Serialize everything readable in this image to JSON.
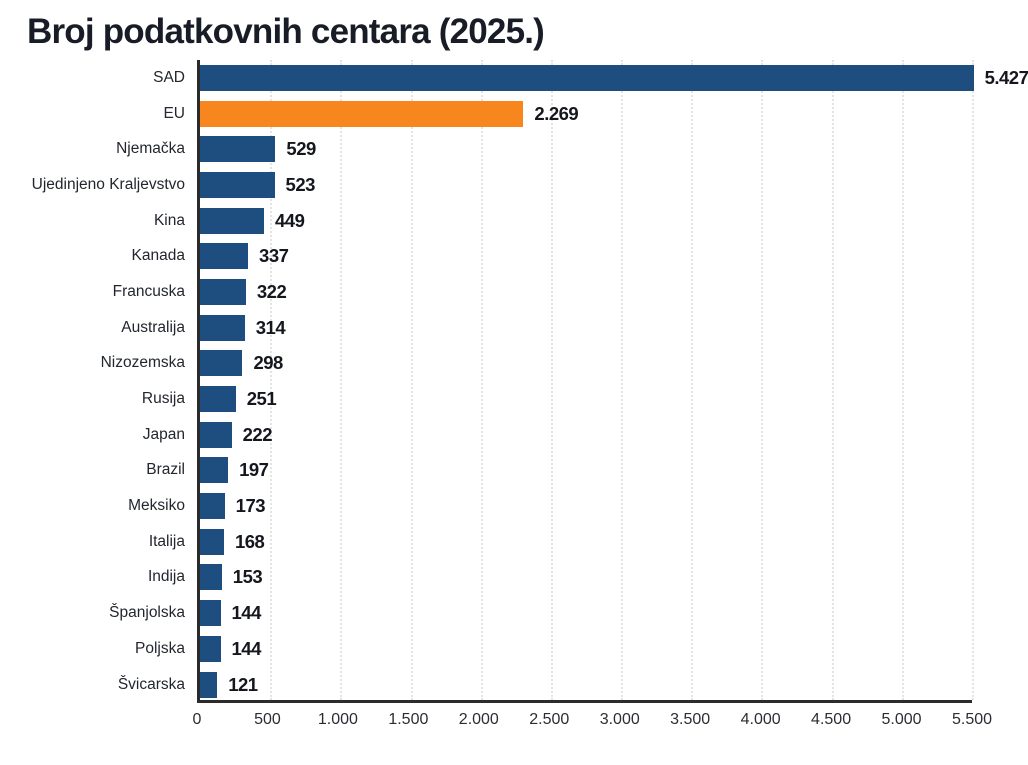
{
  "title": "Broj podatkovnih centara (2025.)",
  "colors": {
    "bar": "#1d4e7f",
    "highlight": "#f7861e",
    "axis": "#2b2b2b",
    "grid": "#e3e3e3",
    "title_text": "#181c26",
    "value_text": "#14171d",
    "category_text": "#22262e"
  },
  "chart_data": {
    "type": "bar",
    "orientation": "horizontal",
    "title": "Broj podatkovnih centara (2025.)",
    "categories": [
      "SAD",
      "EU",
      "Njemačka",
      "Ujedinjeno Kraljevstvo",
      "Kina",
      "Kanada",
      "Francuska",
      "Australija",
      "Nizozemska",
      "Rusija",
      "Japan",
      "Brazil",
      "Meksiko",
      "Italija",
      "Indija",
      "Španjolska",
      "Poljska",
      "Švicarska"
    ],
    "values": [
      5427,
      2269,
      529,
      523,
      449,
      337,
      322,
      314,
      298,
      251,
      222,
      197,
      173,
      168,
      153,
      144,
      144,
      121
    ],
    "value_labels": [
      "5.427",
      "2.269",
      "529",
      "523",
      "449",
      "337",
      "322",
      "314",
      "298",
      "251",
      "222",
      "197",
      "173",
      "168",
      "153",
      "144",
      "144",
      "121"
    ],
    "highlight_category": "EU",
    "xlim": [
      0,
      5500
    ],
    "x_ticks": [
      0,
      500,
      1000,
      1500,
      2000,
      2500,
      3000,
      3500,
      4000,
      4500,
      5000,
      5500
    ],
    "x_tick_labels": [
      "0",
      "500",
      "1.000",
      "1.500",
      "2.000",
      "2.500",
      "3.000",
      "3.500",
      "4.000",
      "4.500",
      "5.000",
      "5.500"
    ],
    "grid": "dotted-vertical",
    "legend": "none",
    "xlabel": "",
    "ylabel": ""
  }
}
